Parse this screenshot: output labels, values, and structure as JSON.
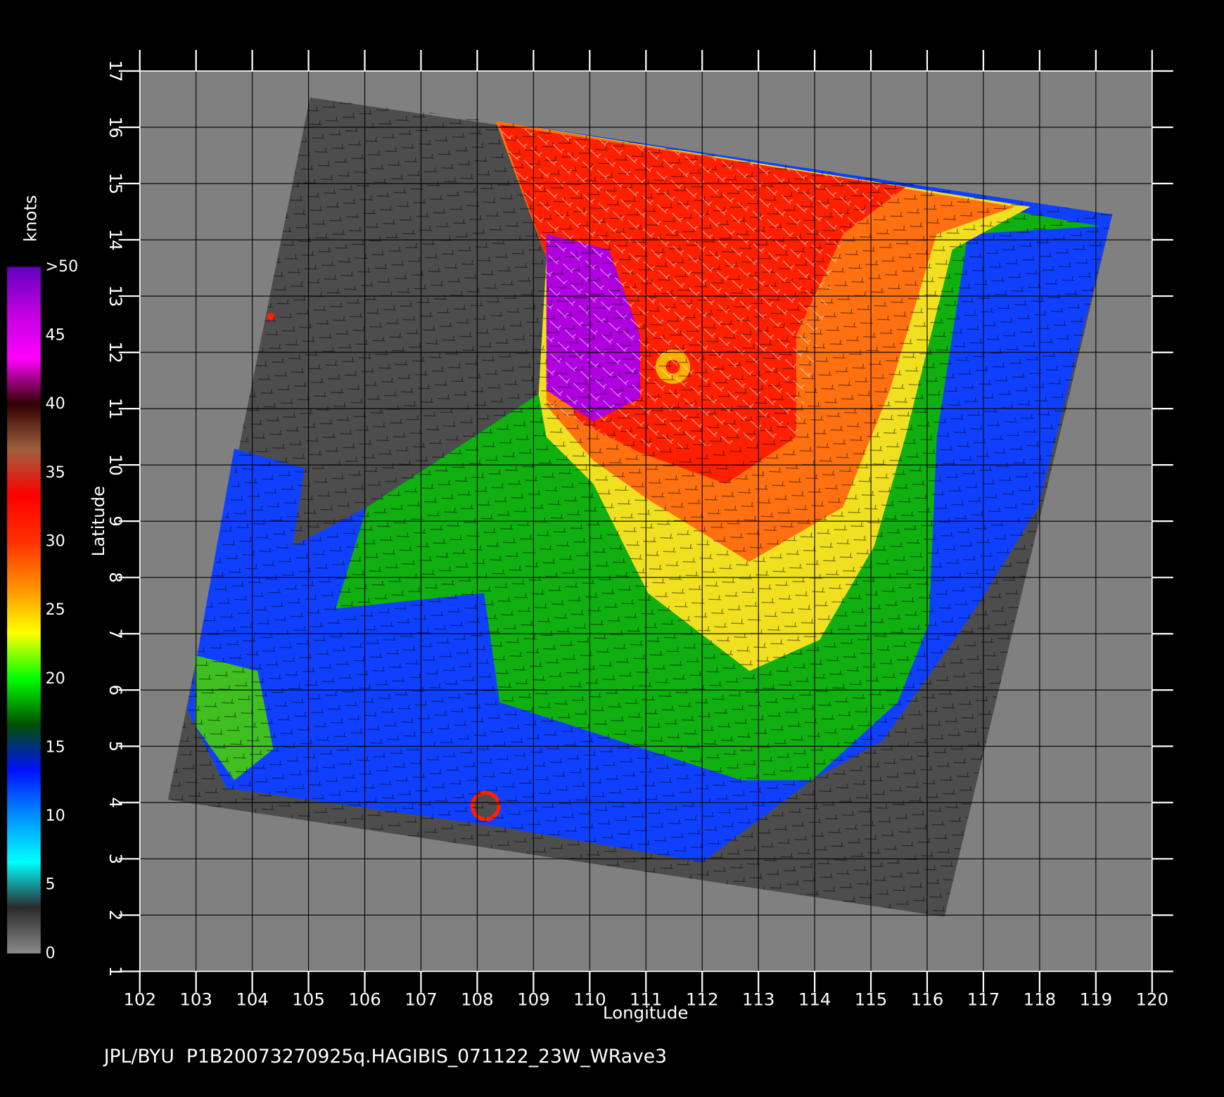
{
  "chart_data": {
    "type": "map",
    "xlabel": "Longitude",
    "ylabel": "Latitude",
    "xlim": [
      102,
      120
    ],
    "ylim": [
      1,
      17
    ],
    "xticks": [
      102,
      103,
      104,
      105,
      106,
      107,
      108,
      109,
      110,
      111,
      112,
      113,
      114,
      115,
      116,
      117,
      118,
      119,
      120
    ],
    "yticks": [
      1,
      2,
      3,
      4,
      5,
      6,
      7,
      8,
      9,
      10,
      11,
      12,
      13,
      14,
      15,
      16,
      17
    ],
    "grid": true,
    "colorbar": {
      "label": "knots",
      "lim": [
        0,
        50
      ],
      "ticks": [
        0,
        5,
        10,
        15,
        20,
        25,
        30,
        35,
        40,
        45,
        {
          "value": 50,
          "label": ">50"
        }
      ],
      "colors": [
        "#8a8a8a",
        "#2a2a2a",
        "#00ffff",
        "#0090ff",
        "#0010ff",
        "#005000",
        "#00ff00",
        "#ffff00",
        "#ff9000",
        "#ff3000",
        "#ff0000",
        "#a06040",
        "#300000",
        "#ff00ff",
        "#c000e0",
        "#6000c0"
      ]
    },
    "footer": "JPL/BYU  P1B20073270925q.HAGIBIS_071122_23W_WRave3"
  }
}
